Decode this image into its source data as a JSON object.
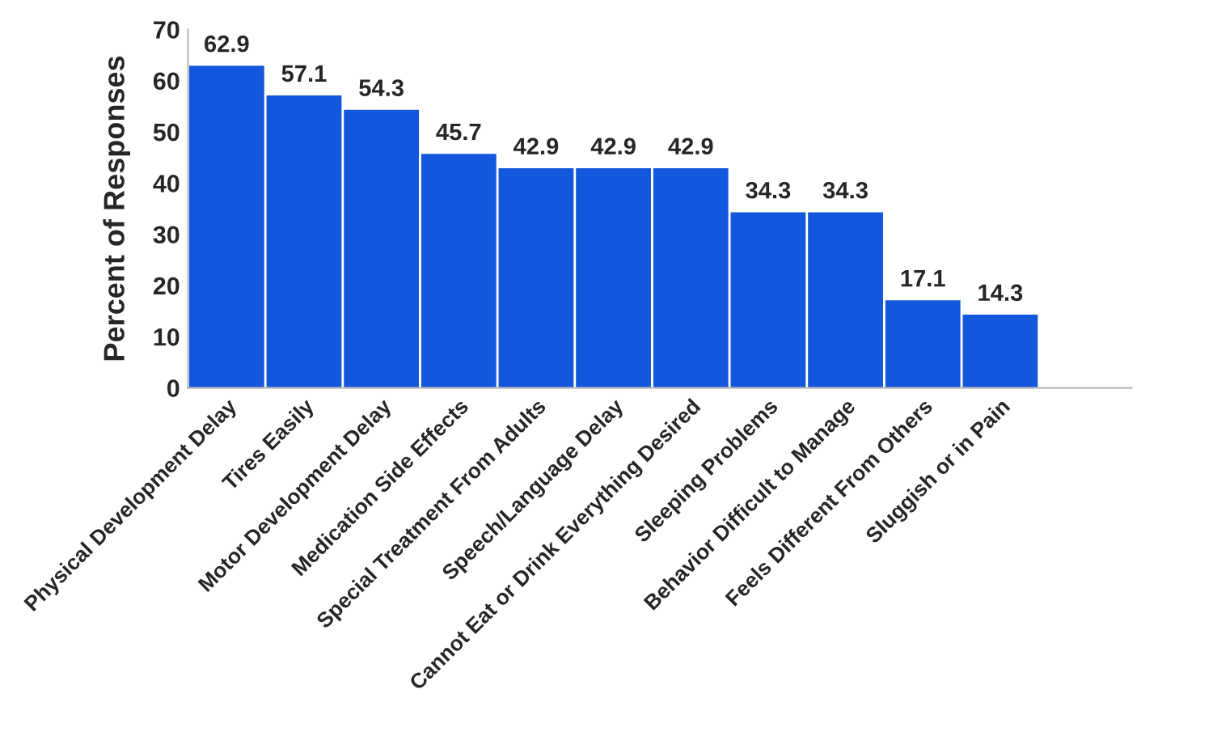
{
  "chart_data": {
    "type": "bar",
    "categories": [
      "Physical Development Delay",
      "Tires Easily",
      "Motor Development Delay",
      "Medication Side Effects",
      "Special Treatment From Adults",
      "Speech/Language Delay",
      "Cannot Eat or Drink Everything Desired",
      "Sleeping Problems",
      "Behavior Difficult to Manage",
      "Feels Different From Others",
      "Sluggish or in Pain"
    ],
    "values": [
      62.9,
      57.1,
      54.3,
      45.7,
      42.9,
      42.9,
      42.9,
      34.3,
      34.3,
      17.1,
      14.3
    ],
    "color": "#1357dd",
    "ylabel": "Percent of Responses",
    "ylim": [
      0,
      70
    ],
    "yticks": [
      0,
      10,
      20,
      30,
      40,
      50,
      60,
      70
    ],
    "data_labels": true,
    "grid": false,
    "legend": false
  }
}
